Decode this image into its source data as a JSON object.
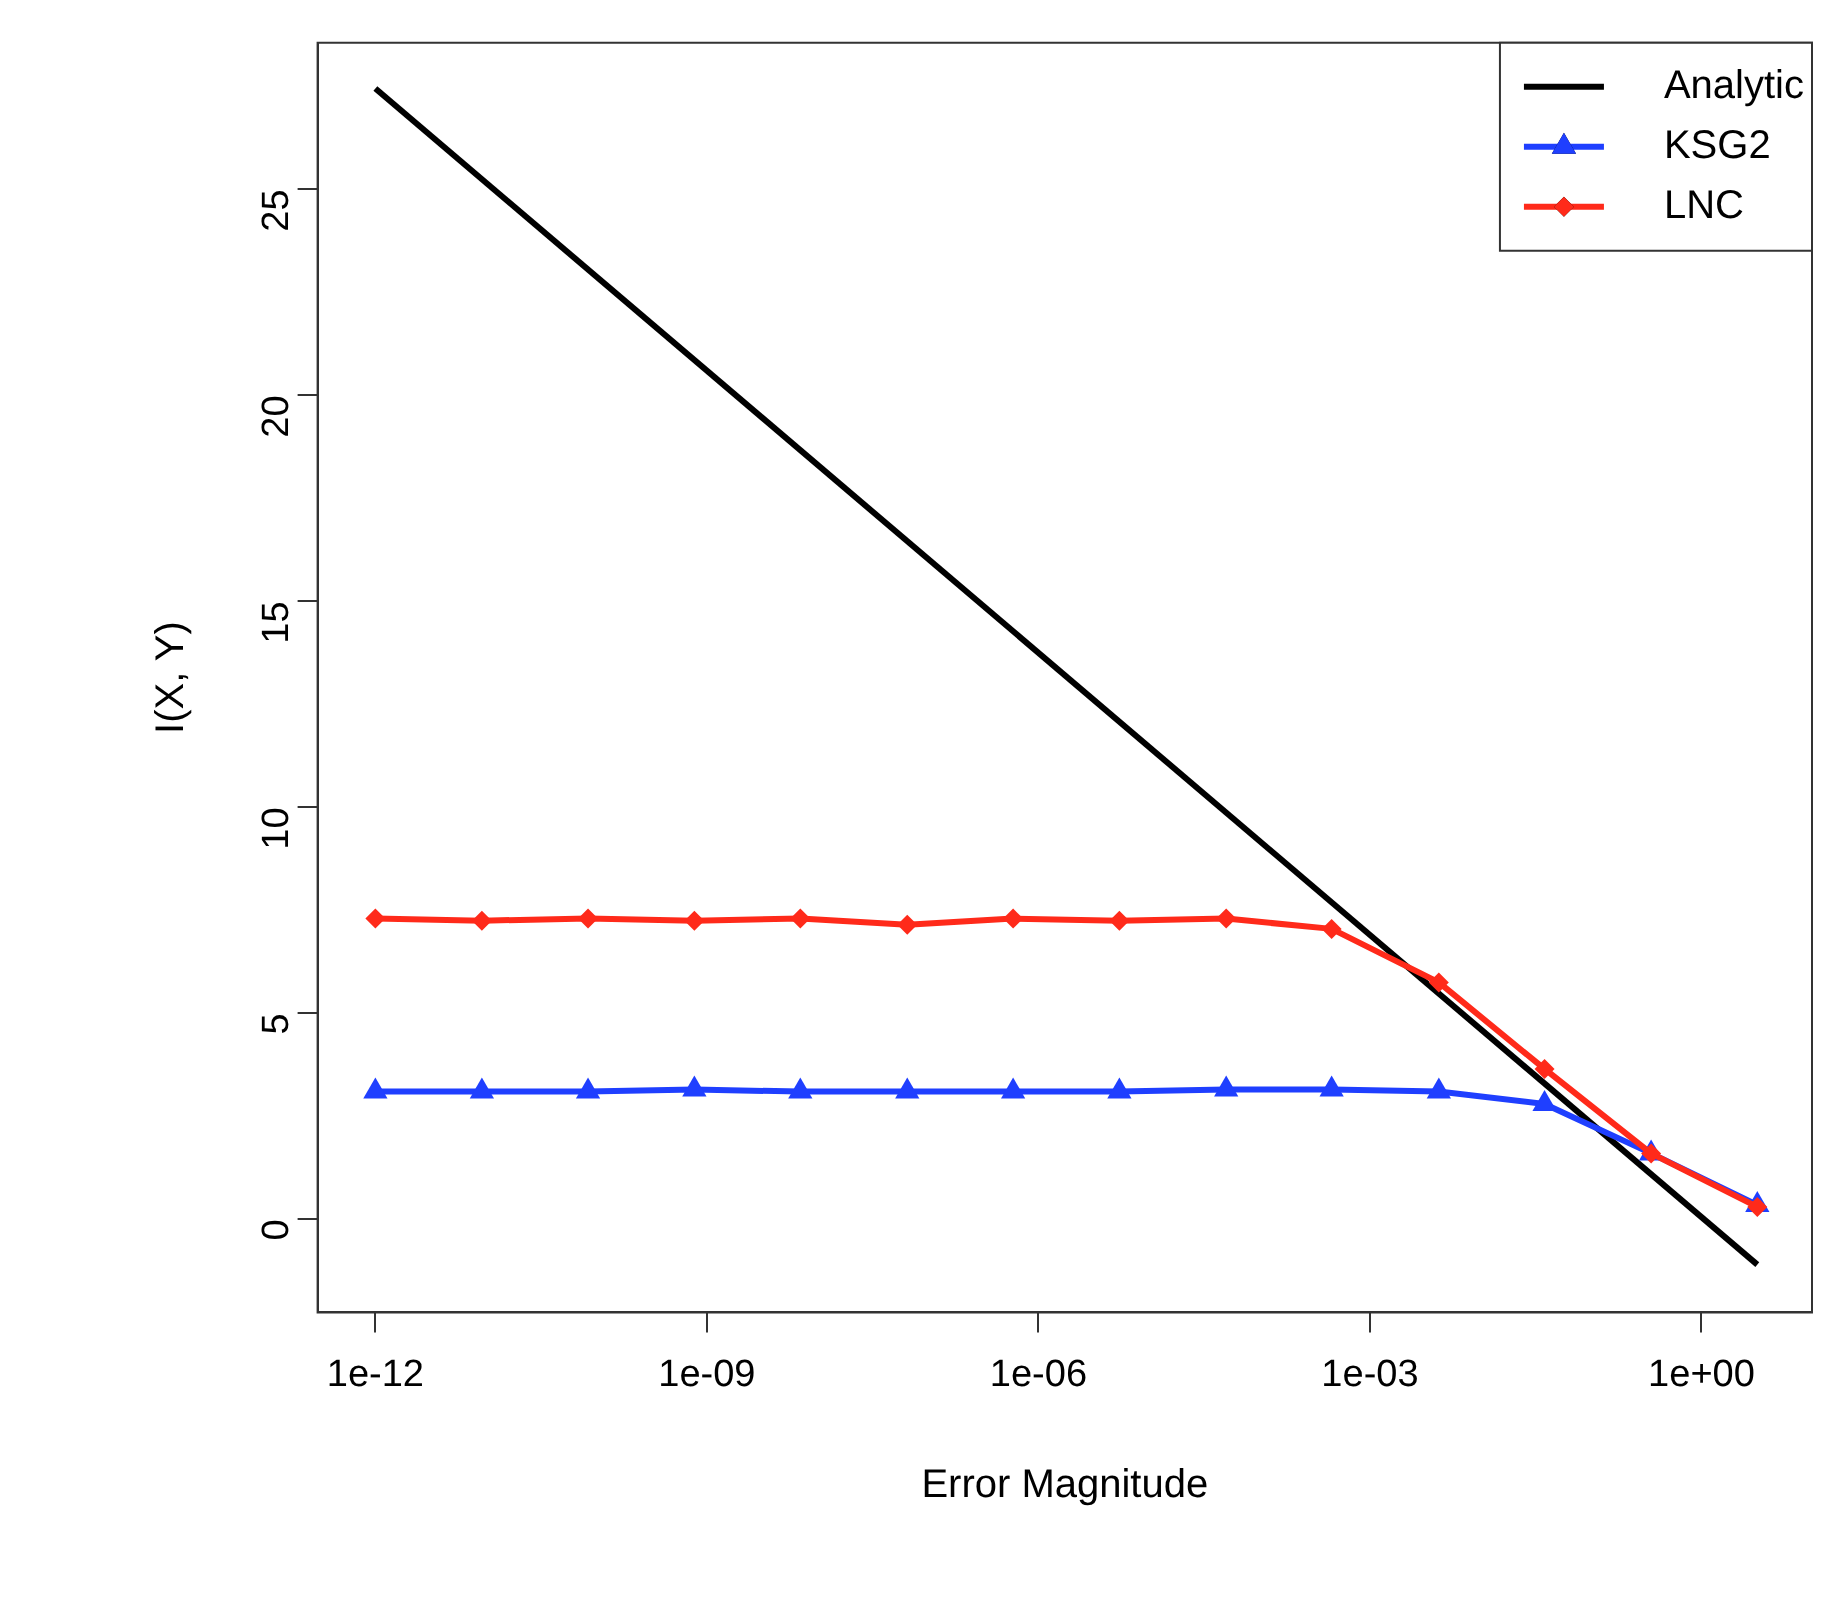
{
  "chart_data": {
    "type": "line",
    "xlabel": "Error Magnitude",
    "ylabel": "I(X, Y)",
    "log": "x",
    "grid": false,
    "legend": "top right",
    "xlim": [
      3.2e-13,
      10
    ],
    "ylim": [
      -2.26,
      28.56
    ],
    "xticks": [
      {
        "value": 1e-12,
        "label": "1e-12"
      },
      {
        "value": 1e-09,
        "label": "1e-09"
      },
      {
        "value": 1e-06,
        "label": "1e-06"
      },
      {
        "value": 0.001,
        "label": "1e-03"
      },
      {
        "value": 1,
        "label": "1e+00"
      }
    ],
    "yticks": [
      0,
      5,
      10,
      15,
      20,
      25
    ],
    "x": [
      1e-12,
      9.2e-12,
      8.4e-11,
      7.7e-10,
      7e-09,
      6.5e-08,
      5.9e-07,
      5.4e-06,
      5e-05,
      0.00045,
      0.0042,
      0.038,
      0.35,
      3.2
    ],
    "series": [
      {
        "name": "Analytic",
        "color": "#000000",
        "marker": "none",
        "x": [
          1e-12,
          3.2
        ],
        "values": [
          27.45,
          -1.1
        ]
      },
      {
        "name": "KSG2",
        "color": "#1f3fff",
        "marker": "triangle",
        "values": [
          3.1,
          3.1,
          3.1,
          3.15,
          3.1,
          3.1,
          3.1,
          3.1,
          3.15,
          3.15,
          3.1,
          2.8,
          1.6,
          0.35
        ]
      },
      {
        "name": "LNC",
        "color": "#ff2a1a",
        "marker": "diamond",
        "values": [
          7.3,
          7.25,
          7.3,
          7.25,
          7.3,
          7.15,
          7.3,
          7.25,
          7.3,
          7.05,
          5.75,
          3.65,
          1.6,
          0.3
        ]
      }
    ]
  }
}
